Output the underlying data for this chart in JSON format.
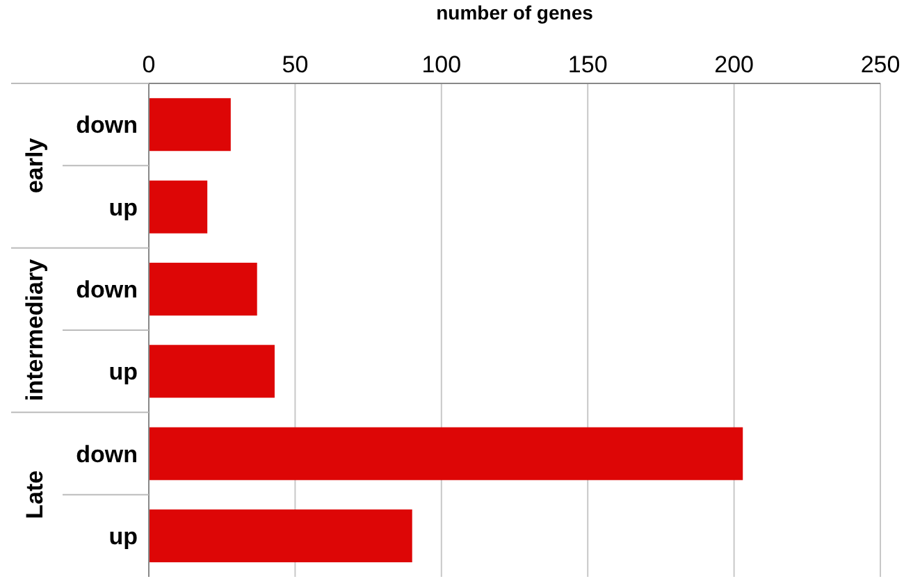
{
  "chart_data": {
    "type": "bar",
    "orientation": "horizontal",
    "xlabel": "number of genes",
    "categories": [
      "down",
      "up",
      "down",
      "up",
      "down",
      "up"
    ],
    "values": [
      28,
      20,
      37,
      43,
      203,
      90
    ],
    "color": "#dd0606",
    "xlim": [
      0,
      250
    ],
    "xticks": [
      0,
      50,
      100,
      150,
      200,
      250
    ],
    "grid": "x",
    "annotations": [
      "early",
      "intermediary",
      "Late"
    ]
  }
}
